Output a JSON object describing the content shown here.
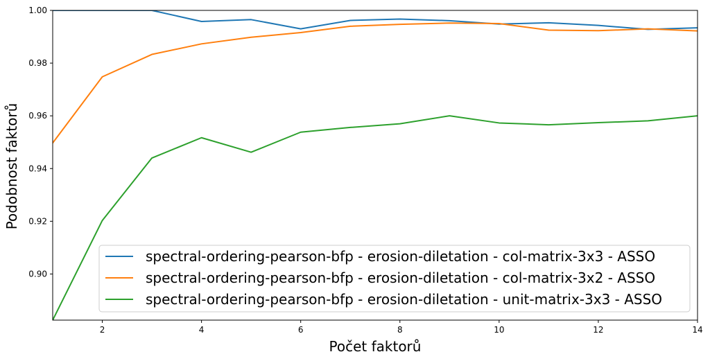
{
  "chart_data": {
    "type": "line",
    "xlabel": "Počet faktorů",
    "ylabel": "Podobnost faktorů",
    "xlim": [
      1,
      14
    ],
    "ylim": [
      0.8825,
      1.0
    ],
    "xticks": [
      2,
      4,
      6,
      8,
      10,
      12,
      14
    ],
    "yticks": [
      0.9,
      0.92,
      0.94,
      0.96,
      0.98,
      1.0
    ],
    "ytick_labels": [
      "0.90",
      "0.92",
      "0.94",
      "0.96",
      "0.98",
      "1.00"
    ],
    "x": [
      1,
      2,
      3,
      4,
      5,
      6,
      7,
      8,
      9,
      10,
      11,
      12,
      13,
      14
    ],
    "grid": false,
    "legend_position": "lower-right",
    "series": [
      {
        "name": "spectral-ordering-pearson-bfp - erosion-diletation - col-matrix-3x3 - ASSO",
        "color": "#1f77b4",
        "values": [
          1.0,
          1.0,
          1.0,
          0.9958,
          0.9965,
          0.993,
          0.9962,
          0.9967,
          0.9961,
          0.9948,
          0.9953,
          0.9943,
          0.9928,
          0.9934
        ]
      },
      {
        "name": "spectral-ordering-pearson-bfp - erosion-diletation - col-matrix-3x2 - ASSO",
        "color": "#ff7f0e",
        "values": [
          0.9497,
          0.9748,
          0.9833,
          0.9873,
          0.9898,
          0.9916,
          0.994,
          0.9947,
          0.9952,
          0.995,
          0.9925,
          0.9923,
          0.993,
          0.9922
        ]
      },
      {
        "name": "spectral-ordering-pearson-bfp - erosion-diletation - unit-matrix-3x3 - ASSO",
        "color": "#2ca02c",
        "values": [
          0.8825,
          0.9203,
          0.944,
          0.9517,
          0.9462,
          0.9538,
          0.9556,
          0.957,
          0.96,
          0.9573,
          0.9566,
          0.9574,
          0.9581,
          0.96
        ]
      }
    ]
  }
}
